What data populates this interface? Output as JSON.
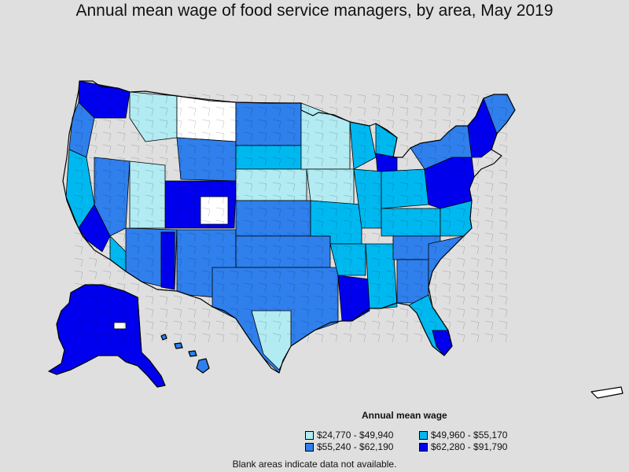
{
  "title": "Annual mean wage of food service managers, by area, May 2019",
  "legend": {
    "title": "Annual mean wage",
    "items": [
      {
        "label": "$24,770 - $49,940",
        "color": "#b2ebf2"
      },
      {
        "label": "$49,960 - $55,170",
        "color": "#00b8f0"
      },
      {
        "label": "$55,240 - $62,190",
        "color": "#2f7fec"
      },
      {
        "label": "$62,280 - $91,790",
        "color": "#0000ee"
      }
    ]
  },
  "note": "Blank areas indicate data not available.",
  "colors": {
    "background": "#dfdfdf",
    "no_data": "#ffffff",
    "border": "#000000"
  }
}
